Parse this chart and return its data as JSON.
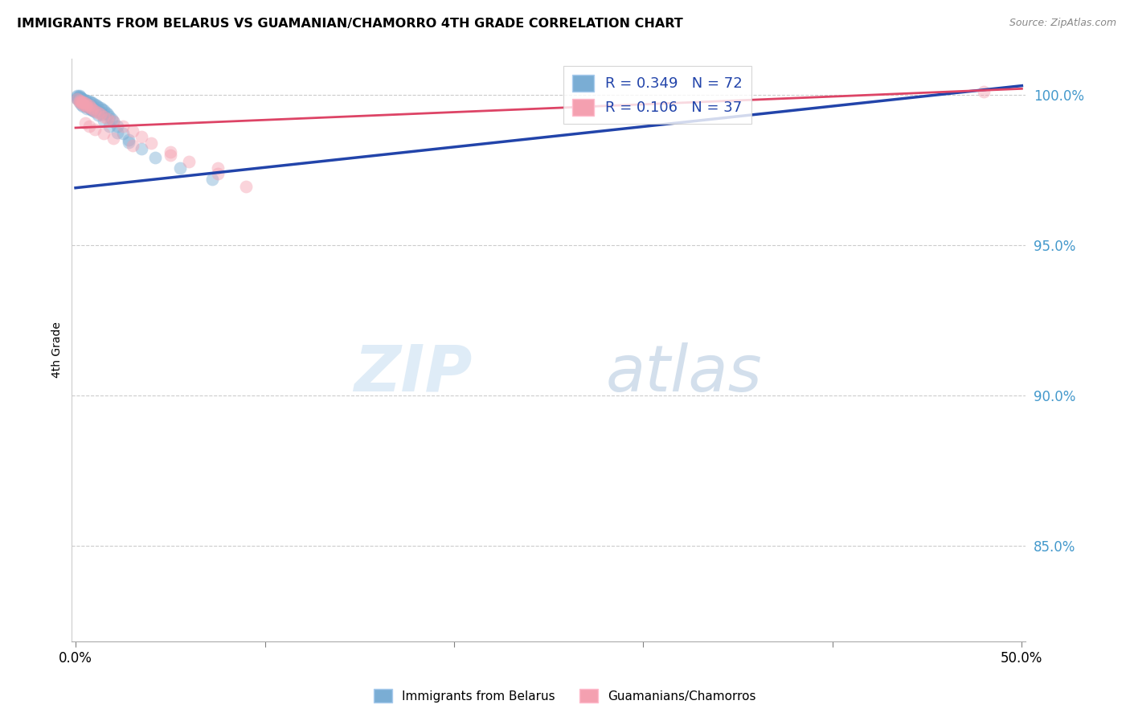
{
  "title": "IMMIGRANTS FROM BELARUS VS GUAMANIAN/CHAMORRO 4TH GRADE CORRELATION CHART",
  "source": "Source: ZipAtlas.com",
  "ylabel": "4th Grade",
  "y_tick_labels": [
    "85.0%",
    "90.0%",
    "95.0%",
    "100.0%"
  ],
  "y_tick_values": [
    0.85,
    0.9,
    0.95,
    1.0
  ],
  "ylim": [
    0.818,
    1.012
  ],
  "xlim": [
    -0.002,
    0.502
  ],
  "blue_R": 0.349,
  "blue_N": 72,
  "pink_R": 0.106,
  "pink_N": 37,
  "blue_color": "#7AADD4",
  "pink_color": "#F4A0B0",
  "blue_line_color": "#2244AA",
  "pink_line_color": "#DD4466",
  "legend_label_blue": "Immigrants from Belarus",
  "legend_label_pink": "Guamanians/Chamorros",
  "blue_line_x": [
    0.0,
    0.5
  ],
  "blue_line_y": [
    0.969,
    1.003
  ],
  "pink_line_x": [
    0.0,
    0.5
  ],
  "pink_line_y": [
    0.989,
    1.002
  ],
  "blue_scatter_x": [
    0.001,
    0.001,
    0.001,
    0.002,
    0.002,
    0.002,
    0.002,
    0.003,
    0.003,
    0.003,
    0.003,
    0.004,
    0.004,
    0.004,
    0.004,
    0.005,
    0.005,
    0.005,
    0.006,
    0.006,
    0.006,
    0.006,
    0.007,
    0.007,
    0.007,
    0.008,
    0.008,
    0.008,
    0.009,
    0.009,
    0.009,
    0.01,
    0.01,
    0.011,
    0.011,
    0.012,
    0.012,
    0.013,
    0.013,
    0.014,
    0.014,
    0.015,
    0.016,
    0.017,
    0.018,
    0.019,
    0.02,
    0.022,
    0.025,
    0.028,
    0.001,
    0.002,
    0.002,
    0.003,
    0.003,
    0.004,
    0.005,
    0.005,
    0.006,
    0.007,
    0.008,
    0.009,
    0.01,
    0.012,
    0.015,
    0.018,
    0.022,
    0.028,
    0.035,
    0.042,
    0.055,
    0.072
  ],
  "blue_scatter_y": [
    0.9995,
    0.999,
    0.9985,
    0.9992,
    0.9988,
    0.998,
    0.9975,
    0.9988,
    0.9982,
    0.9975,
    0.9968,
    0.9985,
    0.9978,
    0.997,
    0.9962,
    0.9982,
    0.9974,
    0.9965,
    0.998,
    0.9972,
    0.9963,
    0.9954,
    0.9978,
    0.9968,
    0.9958,
    0.9975,
    0.9964,
    0.9952,
    0.9972,
    0.996,
    0.9948,
    0.9968,
    0.9955,
    0.9964,
    0.995,
    0.996,
    0.9945,
    0.9956,
    0.994,
    0.9952,
    0.9935,
    0.9948,
    0.9942,
    0.9935,
    0.9928,
    0.992,
    0.9912,
    0.9895,
    0.987,
    0.9842,
    0.9998,
    0.9996,
    0.9993,
    0.999,
    0.9986,
    0.9982,
    0.9978,
    0.9973,
    0.9968,
    0.9962,
    0.9956,
    0.995,
    0.9944,
    0.9932,
    0.9915,
    0.9895,
    0.9875,
    0.985,
    0.982,
    0.979,
    0.9755,
    0.9718
  ],
  "pink_scatter_x": [
    0.001,
    0.002,
    0.002,
    0.003,
    0.003,
    0.004,
    0.004,
    0.005,
    0.005,
    0.006,
    0.006,
    0.007,
    0.008,
    0.009,
    0.01,
    0.012,
    0.013,
    0.015,
    0.017,
    0.02,
    0.025,
    0.03,
    0.035,
    0.04,
    0.05,
    0.06,
    0.075,
    0.09,
    0.005,
    0.007,
    0.01,
    0.015,
    0.02,
    0.03,
    0.05,
    0.075,
    0.48
  ],
  "pink_scatter_y": [
    0.9985,
    0.998,
    0.9975,
    0.9978,
    0.9972,
    0.9975,
    0.9968,
    0.9972,
    0.9965,
    0.9968,
    0.996,
    0.9965,
    0.9958,
    0.9952,
    0.9945,
    0.994,
    0.9935,
    0.9928,
    0.992,
    0.991,
    0.9895,
    0.9878,
    0.986,
    0.984,
    0.981,
    0.9778,
    0.9738,
    0.9695,
    0.9905,
    0.9895,
    0.9885,
    0.987,
    0.9855,
    0.9832,
    0.9798,
    0.9755,
    1.001
  ]
}
